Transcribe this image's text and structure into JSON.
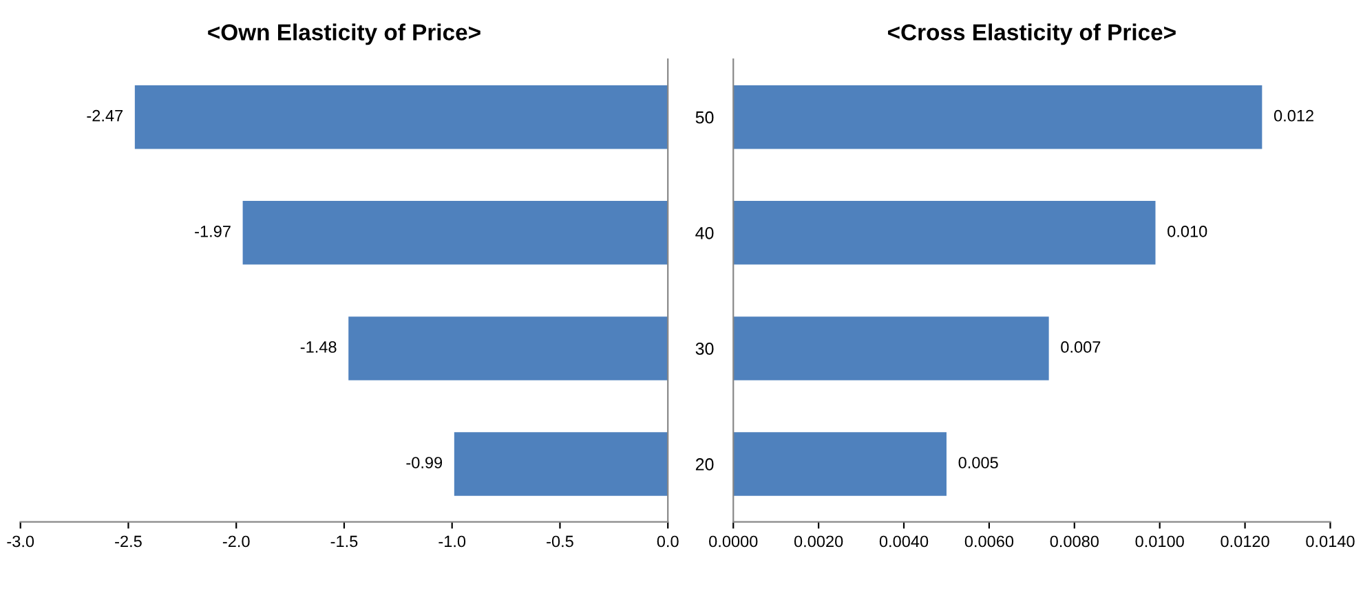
{
  "chart_data": [
    {
      "type": "bar",
      "orientation": "horizontal",
      "title": "<Own Elasticity of Price>",
      "categories": [
        "50",
        "40",
        "30",
        "20"
      ],
      "values": [
        -2.47,
        -1.97,
        -1.48,
        -0.99
      ],
      "color": "#4f81bd",
      "data_labels": true,
      "xlim": [
        -3.0,
        0.0
      ],
      "xticks": [
        {
          "value": -3.0,
          "label": "-3.0"
        },
        {
          "value": -2.5,
          "label": "-2.5"
        },
        {
          "value": -2.0,
          "label": "-2.0"
        },
        {
          "value": -1.5,
          "label": "-1.5"
        },
        {
          "value": -1.0,
          "label": "-1.0"
        },
        {
          "value": -0.5,
          "label": "-0.5"
        },
        {
          "value": 0.0,
          "label": "0.0"
        }
      ],
      "tick_labels": "x",
      "grid": false,
      "legend": false
    },
    {
      "type": "bar",
      "orientation": "horizontal",
      "title": "<Cross Elasticity of Price>",
      "categories": [
        "50",
        "40",
        "30",
        "20"
      ],
      "values": [
        0.0124,
        0.0099,
        0.0074,
        0.005
      ],
      "value_labels": [
        "0.012",
        "0.010",
        "0.007",
        "0.005"
      ],
      "color": "#4f81bd",
      "xlim": [
        0.0,
        0.014
      ],
      "xticks": [
        {
          "value": 0.0,
          "label": "0.0000"
        },
        {
          "value": 0.002,
          "label": "0.0020"
        },
        {
          "value": 0.004,
          "label": "0.0040"
        },
        {
          "value": 0.006,
          "label": "0.0060"
        },
        {
          "value": 0.008,
          "label": "0.0080"
        },
        {
          "value": 0.01,
          "label": "0.0100"
        },
        {
          "value": 0.012,
          "label": "0.0120"
        },
        {
          "value": 0.014,
          "label": "0.0140"
        }
      ],
      "grid": false,
      "legend": false
    }
  ]
}
